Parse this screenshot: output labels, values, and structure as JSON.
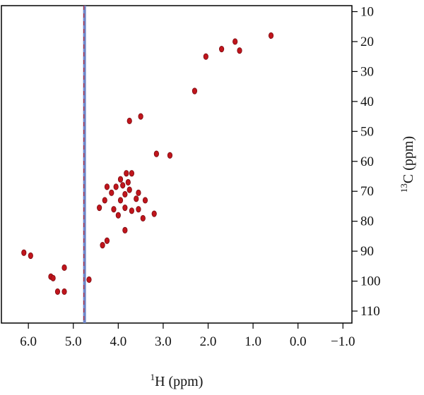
{
  "chart_data": {
    "type": "scatter",
    "title": "",
    "xlabel": {
      "superscript": "1",
      "text": "H (ppm)"
    },
    "ylabel": {
      "superscript": "13",
      "text": "C (ppm)"
    },
    "xlim": [
      6.6,
      -1.2
    ],
    "ylim": [
      8,
      114
    ],
    "x_reversed": true,
    "y_reversed": true,
    "x_ticks": [
      6.0,
      5.0,
      4.0,
      3.0,
      2.0,
      1.0,
      0.0,
      -1.0
    ],
    "x_tick_labels": [
      "6.0",
      "5.0",
      "4.0",
      "3.0",
      "2.0",
      "1.0",
      "0.0",
      "−1.0"
    ],
    "y_ticks": [
      10,
      20,
      30,
      40,
      50,
      60,
      70,
      80,
      90,
      100,
      110
    ],
    "y_tick_labels": [
      "10",
      "20",
      "30",
      "40",
      "50",
      "60",
      "70",
      "80",
      "90",
      "100",
      "110"
    ],
    "grid": false,
    "colors": {
      "peak": "#c0151c",
      "peak_edge": "#7a0a10",
      "solvent": "#6f86c9",
      "frame": "#000000"
    },
    "solvent_line": {
      "x": 4.75,
      "y_range": [
        8,
        114
      ]
    },
    "series": [
      {
        "points": [
          {
            "x": 0.6,
            "y": 18.0
          },
          {
            "x": 1.3,
            "y": 23.0
          },
          {
            "x": 1.4,
            "y": 20.0
          },
          {
            "x": 1.7,
            "y": 22.5
          },
          {
            "x": 2.05,
            "y": 25.0
          },
          {
            "x": 2.3,
            "y": 36.5
          },
          {
            "x": 3.5,
            "y": 45.0
          },
          {
            "x": 3.75,
            "y": 46.5
          },
          {
            "x": 2.85,
            "y": 58.0
          },
          {
            "x": 3.15,
            "y": 57.5
          },
          {
            "x": 3.7,
            "y": 64.0
          },
          {
            "x": 3.82,
            "y": 64.0
          },
          {
            "x": 3.95,
            "y": 66.0
          },
          {
            "x": 3.78,
            "y": 67.0
          },
          {
            "x": 3.9,
            "y": 68.0
          },
          {
            "x": 4.05,
            "y": 68.5
          },
          {
            "x": 4.25,
            "y": 68.5
          },
          {
            "x": 3.75,
            "y": 69.5
          },
          {
            "x": 3.55,
            "y": 70.5
          },
          {
            "x": 4.15,
            "y": 70.5
          },
          {
            "x": 3.85,
            "y": 71.0
          },
          {
            "x": 3.6,
            "y": 72.5
          },
          {
            "x": 3.4,
            "y": 73.0
          },
          {
            "x": 3.95,
            "y": 73.0
          },
          {
            "x": 4.3,
            "y": 73.0
          },
          {
            "x": 3.85,
            "y": 75.5
          },
          {
            "x": 3.7,
            "y": 76.5
          },
          {
            "x": 4.1,
            "y": 76.0
          },
          {
            "x": 3.55,
            "y": 76.0
          },
          {
            "x": 4.42,
            "y": 75.5
          },
          {
            "x": 3.2,
            "y": 77.5
          },
          {
            "x": 4.0,
            "y": 78.0
          },
          {
            "x": 3.45,
            "y": 79.0
          },
          {
            "x": 3.85,
            "y": 83.0
          },
          {
            "x": 4.25,
            "y": 86.5
          },
          {
            "x": 4.35,
            "y": 88.0
          },
          {
            "x": 6.1,
            "y": 90.5
          },
          {
            "x": 5.95,
            "y": 91.5
          },
          {
            "x": 5.2,
            "y": 95.5
          },
          {
            "x": 5.5,
            "y": 98.5
          },
          {
            "x": 5.45,
            "y": 99.0
          },
          {
            "x": 4.65,
            "y": 99.5
          },
          {
            "x": 5.35,
            "y": 103.5
          },
          {
            "x": 5.2,
            "y": 103.5
          }
        ]
      }
    ]
  }
}
